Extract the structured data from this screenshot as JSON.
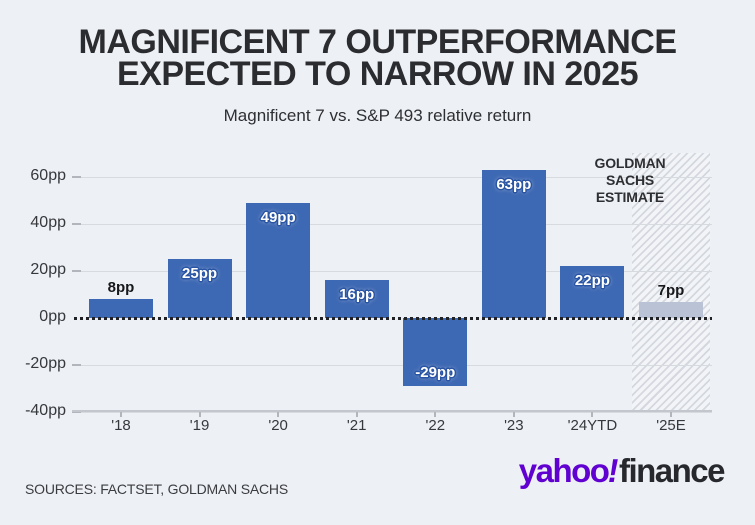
{
  "title": {
    "line1": "MAGNIFICENT 7 OUTPERFORMANCE",
    "line2": "EXPECTED TO NARROW IN 2025"
  },
  "subtitle": "Magnificent 7 vs. S&P 493 relative return",
  "annotation": {
    "lines": [
      "GOLDMAN",
      "SACHS",
      "ESTIMATE"
    ]
  },
  "source": "SOURCES: FACTSET, GOLDMAN SACHS",
  "logo": {
    "brand": "yahoo",
    "bang": "!",
    "product": "finance",
    "brand_color": "#6001d2",
    "product_color": "#26282d"
  },
  "chart_data": {
    "type": "bar",
    "title": "MAGNIFICENT 7 OUTPERFORMANCE EXPECTED TO NARROW IN 2025",
    "subtitle": "Magnificent 7 vs. S&P 493 relative return",
    "categories": [
      "'18",
      "'19",
      "'20",
      "'21",
      "'22",
      "'23",
      "'24YTD",
      "'25E"
    ],
    "values": [
      8,
      25,
      49,
      16,
      -29,
      63,
      22,
      7
    ],
    "value_labels": [
      "8pp",
      "25pp",
      "49pp",
      "16pp",
      "-29pp",
      "63pp",
      "22pp",
      "7pp"
    ],
    "estimate_index": 7,
    "estimate_annotation": "GOLDMAN SACHS ESTIMATE",
    "y_ticks": [
      {
        "value": 60,
        "label": "60pp"
      },
      {
        "value": 40,
        "label": "40pp"
      },
      {
        "value": 20,
        "label": "20pp"
      },
      {
        "value": 0,
        "label": "0pp"
      },
      {
        "value": -20,
        "label": "-20pp"
      },
      {
        "value": -40,
        "label": "-40pp"
      }
    ],
    "ylim": [
      -40,
      70
    ],
    "xlabel": "",
    "ylabel": "",
    "grid": true,
    "zero_line_style": "dotted",
    "bar_color": "#3d68b3",
    "estimate_bar_color": "#b9c3d5",
    "estimate_hatch": true
  }
}
